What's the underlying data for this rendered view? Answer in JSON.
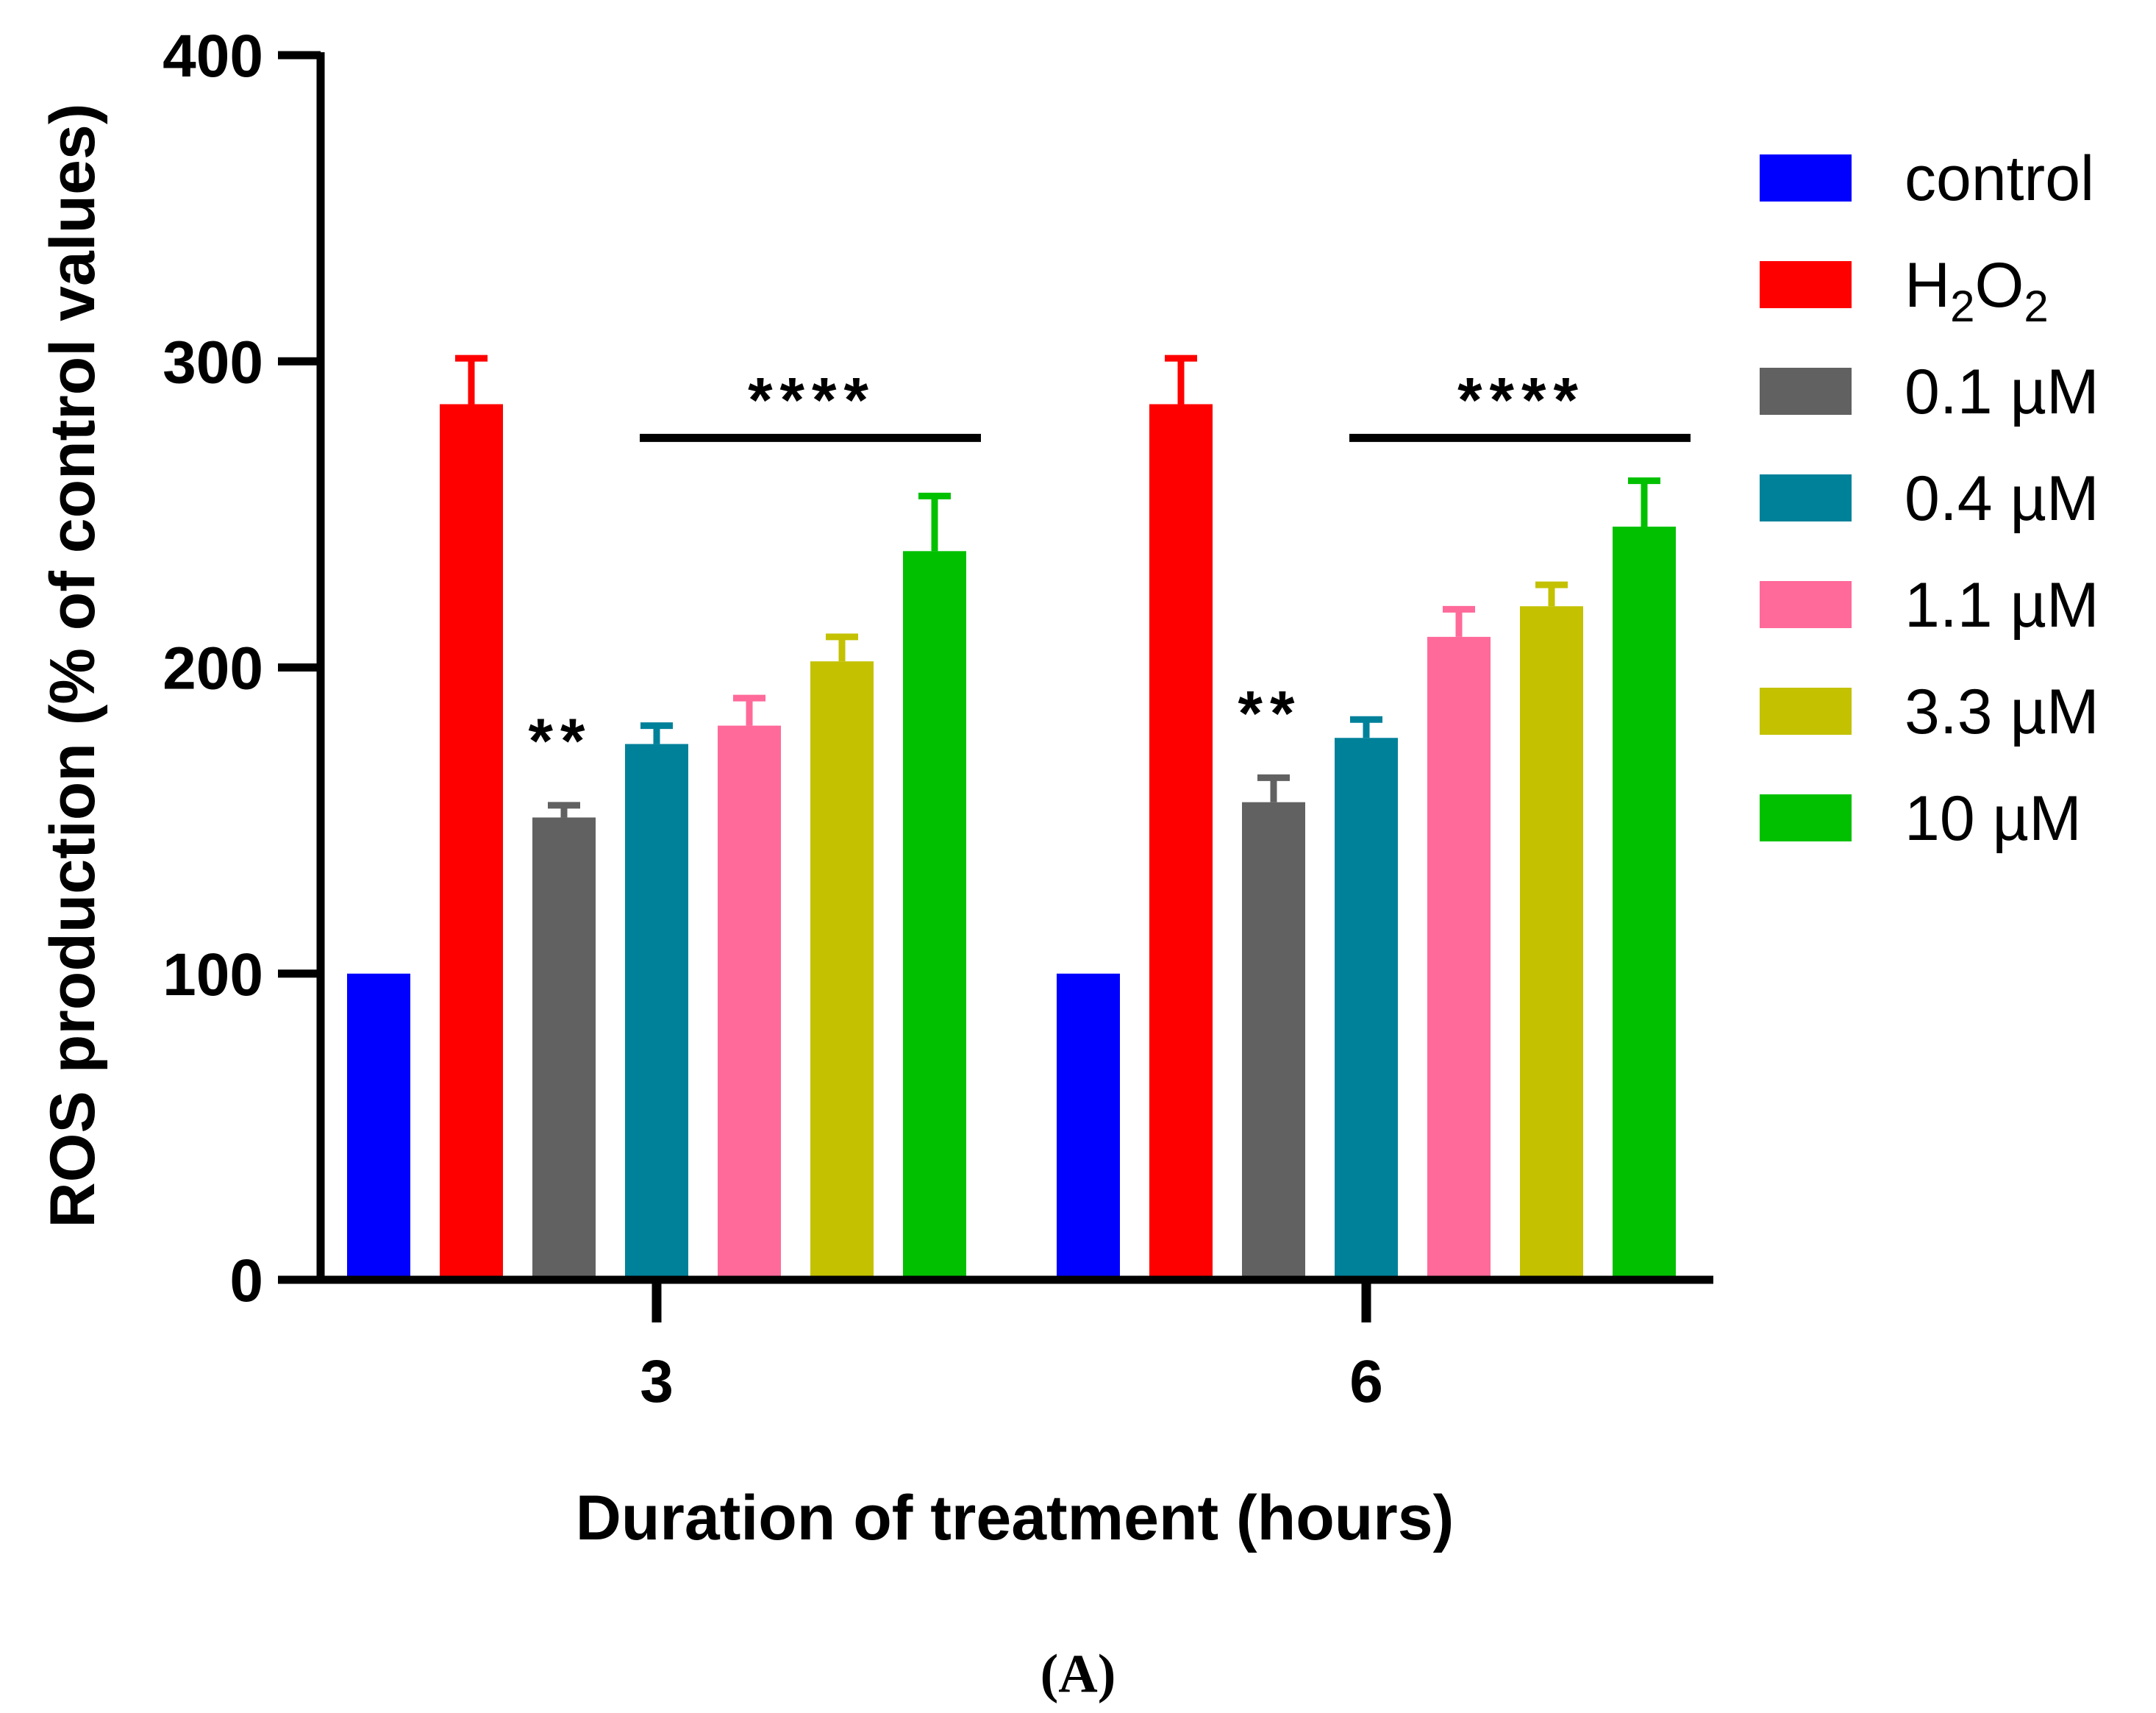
{
  "chart_data": {
    "type": "bar",
    "title": "",
    "xlabel": "Duration of treatment (hours)",
    "ylabel": "ROS production (% of control values)",
    "ylim": [
      0,
      400
    ],
    "yticks": [
      0,
      100,
      200,
      300,
      400
    ],
    "categories": [
      "3",
      "6"
    ],
    "series": [
      {
        "name": "control",
        "color": "#0000ff",
        "values": [
          100,
          100
        ],
        "errors": [
          0,
          0
        ]
      },
      {
        "name": "H2O2",
        "color": "#ff0000",
        "values": [
          286,
          286
        ],
        "errors": [
          15,
          15
        ]
      },
      {
        "name": "0.1 µM",
        "color": "#616161",
        "values": [
          151,
          156
        ],
        "errors": [
          4,
          8
        ]
      },
      {
        "name": "0.4 µM",
        "color": "#00819a",
        "values": [
          175,
          177
        ],
        "errors": [
          6,
          6
        ]
      },
      {
        "name": "1.1 µM",
        "color": "#ff6a9a",
        "values": [
          181,
          210
        ],
        "errors": [
          9,
          9
        ]
      },
      {
        "name": "3.3 µM",
        "color": "#c3c100",
        "values": [
          202,
          220
        ],
        "errors": [
          8,
          7
        ]
      },
      {
        "name": "10 µM",
        "color": "#00c000",
        "values": [
          238,
          246
        ],
        "errors": [
          18,
          15
        ]
      }
    ],
    "legend": {
      "position": "right",
      "entries": [
        {
          "label": "control"
        },
        {
          "label": "H",
          "sub1": "2",
          "mid": "O",
          "sub2": "2"
        },
        {
          "label": "0.1 µM"
        },
        {
          "label": "0.4 µM"
        },
        {
          "label": "1.1 µM"
        },
        {
          "label": "3.3 µM"
        },
        {
          "label": "10 µM"
        }
      ]
    },
    "annotations": [
      {
        "text": "**",
        "category": 0,
        "series": 2
      },
      {
        "text": "**",
        "category": 1,
        "series": 2
      },
      {
        "text": "****",
        "category": 0,
        "span_series": [
          3,
          6
        ],
        "line_value": 275
      },
      {
        "text": "****",
        "category": 1,
        "span_series": [
          3,
          6
        ],
        "line_value": 275
      }
    ],
    "panel_label": "(A)"
  }
}
